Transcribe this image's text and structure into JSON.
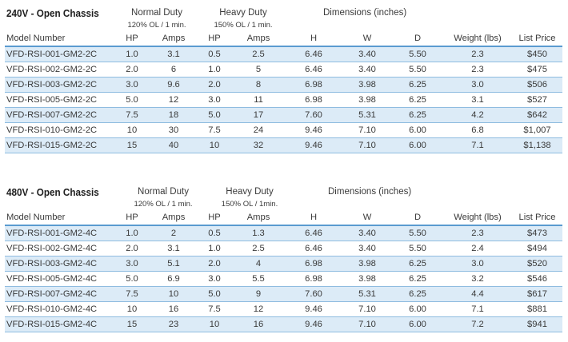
{
  "tables": [
    {
      "title": "240V - Open Chassis",
      "normal_duty": {
        "label": "Normal Duty",
        "sub": "120% OL / 1 min."
      },
      "heavy_duty": {
        "label": "Heavy Duty",
        "sub": "150% OL / 1 min."
      },
      "dimensions_label": "Dimensions (inches)",
      "columns": [
        "Model Number",
        "HP",
        "Amps",
        "HP",
        "Amps",
        "H",
        "W",
        "D",
        "Weight (lbs)",
        "List Price"
      ],
      "rows": [
        [
          "VFD-RSI-001-GM2-2C",
          "1.0",
          "3.1",
          "0.5",
          "2.5",
          "6.46",
          "3.40",
          "5.50",
          "2.3",
          "$450"
        ],
        [
          "VFD-RSI-002-GM2-2C",
          "2.0",
          "6",
          "1.0",
          "5",
          "6.46",
          "3.40",
          "5.50",
          "2.3",
          "$475"
        ],
        [
          "VFD-RSI-003-GM2-2C",
          "3.0",
          "9.6",
          "2.0",
          "8",
          "6.98",
          "3.98",
          "6.25",
          "3.0",
          "$506"
        ],
        [
          "VFD-RSI-005-GM2-2C",
          "5.0",
          "12",
          "3.0",
          "11",
          "6.98",
          "3.98",
          "6.25",
          "3.1",
          "$527"
        ],
        [
          "VFD-RSI-007-GM2-2C",
          "7.5",
          "18",
          "5.0",
          "17",
          "7.60",
          "5.31",
          "6.25",
          "4.2",
          "$642"
        ],
        [
          "VFD-RSI-010-GM2-2C",
          "10",
          "30",
          "7.5",
          "24",
          "9.46",
          "7.10",
          "6.00",
          "6.8",
          "$1,007"
        ],
        [
          "VFD-RSI-015-GM2-2C",
          "15",
          "40",
          "10",
          "32",
          "9.46",
          "7.10",
          "6.00",
          "7.1",
          "$1,138"
        ]
      ]
    },
    {
      "title": "480V - Open Chassis",
      "normal_duty": {
        "label": "Normal Duty",
        "sub": "120% OL / 1 min."
      },
      "heavy_duty": {
        "label": "Heavy Duty",
        "sub": "150% OL / 1min."
      },
      "dimensions_label": "Dimensions (inches)",
      "columns": [
        "Model Number",
        "HP",
        "Amps",
        "HP",
        "Amps",
        "H",
        "W",
        "D",
        "Weight (lbs)",
        "List Price"
      ],
      "rows": [
        [
          "VFD-RSI-001-GM2-4C",
          "1.0",
          "2",
          "0.5",
          "1.3",
          "6.46",
          "3.40",
          "5.50",
          "2.3",
          "$473"
        ],
        [
          "VFD-RSI-002-GM2-4C",
          "2.0",
          "3.1",
          "1.0",
          "2.5",
          "6.46",
          "3.40",
          "5.50",
          "2.4",
          "$494"
        ],
        [
          "VFD-RSI-003-GM2-4C",
          "3.0",
          "5.1",
          "2.0",
          "4",
          "6.98",
          "3.98",
          "6.25",
          "3.0",
          "$520"
        ],
        [
          "VFD-RSI-005-GM2-4C",
          "5.0",
          "6.9",
          "3.0",
          "5.5",
          "6.98",
          "3.98",
          "6.25",
          "3.2",
          "$546"
        ],
        [
          "VFD-RSI-007-GM2-4C",
          "7.5",
          "10",
          "5.0",
          "9",
          "7.60",
          "5.31",
          "6.25",
          "4.4",
          "$617"
        ],
        [
          "VFD-RSI-010-GM2-4C",
          "10",
          "16",
          "7.5",
          "12",
          "9.46",
          "7.10",
          "6.00",
          "7.1",
          "$881"
        ],
        [
          "VFD-RSI-015-GM2-4C",
          "15",
          "23",
          "10",
          "16",
          "9.46",
          "7.10",
          "6.00",
          "7.2",
          "$941"
        ]
      ]
    }
  ],
  "colors": {
    "row_stripe": "#dcebf7",
    "rule": "#5a9bd0",
    "row_line": "#8fbce0",
    "text": "#3a3a3a"
  }
}
